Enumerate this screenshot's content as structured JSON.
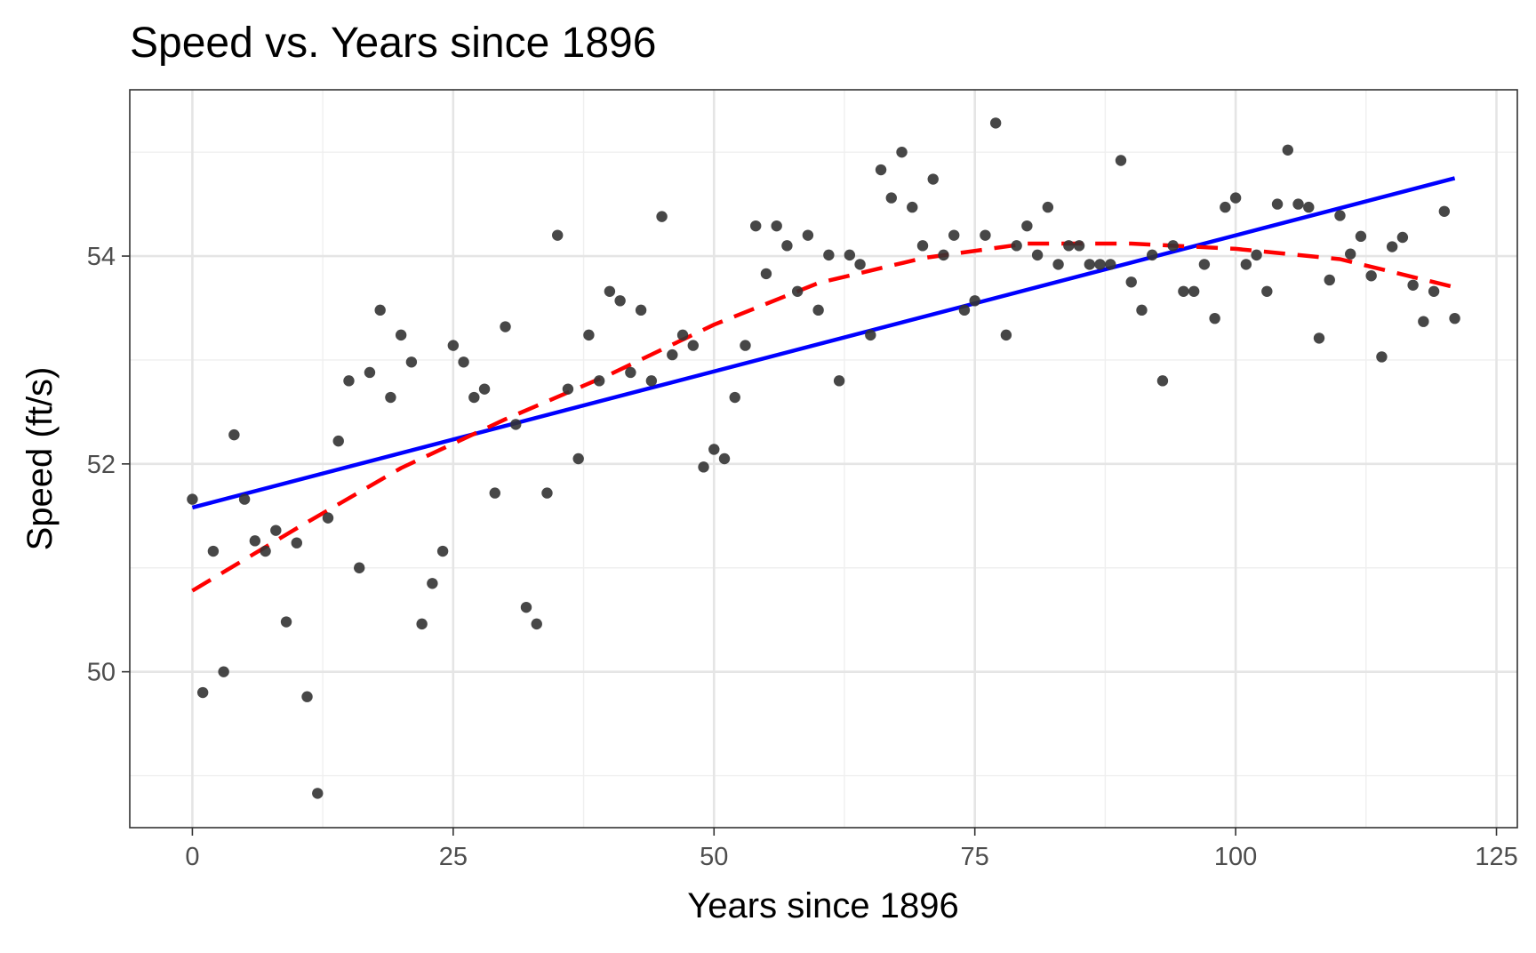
{
  "colors": {
    "points": "#333333",
    "linear_fit": "#0000ff",
    "quadratic_fit": "#ff0000",
    "grid": "#e5e5e5",
    "tick_text": "#4d4d4d"
  },
  "chart_data": {
    "type": "scatter",
    "title": "Speed vs. Years since 1896",
    "xlabel": "Years since 1896",
    "ylabel": "Speed (ft/s)",
    "xlim": [
      -6,
      127
    ],
    "ylim": [
      48.5,
      55.6
    ],
    "x_ticks": [
      0,
      25,
      50,
      75,
      100,
      125
    ],
    "x_tick_labels": [
      "0",
      "25",
      "50",
      "75",
      "100",
      "125"
    ],
    "y_ticks": [
      50,
      52,
      54
    ],
    "y_tick_labels": [
      "50",
      "52",
      "54"
    ],
    "grid": "major and minor",
    "legend": "none",
    "series": [
      {
        "kind": "points",
        "x": [
          0,
          1,
          2,
          3,
          4,
          5,
          6,
          7,
          8,
          9,
          10,
          11,
          12,
          13,
          14,
          15,
          16,
          17,
          18,
          19,
          20,
          21,
          22,
          23,
          24,
          25,
          26,
          27,
          28,
          29,
          30,
          31,
          32,
          33,
          34,
          35,
          36,
          37,
          38,
          39,
          40,
          41,
          42,
          43,
          44,
          45,
          46,
          47,
          48,
          49,
          50,
          51,
          52,
          53,
          54,
          55,
          56,
          57,
          58,
          59,
          60,
          61,
          62,
          63,
          64,
          65,
          66,
          67,
          68,
          69,
          70,
          71,
          72,
          73,
          74,
          75,
          76,
          77,
          78,
          79,
          80,
          81,
          82,
          83,
          84,
          85,
          86,
          87,
          88,
          89,
          90,
          91,
          92,
          93,
          94,
          95,
          96,
          97,
          98,
          99,
          100,
          101,
          102,
          103,
          104,
          105,
          106,
          107,
          108,
          109,
          110,
          111,
          112,
          113,
          114,
          115,
          116,
          117,
          118,
          119,
          120,
          121
        ],
        "y": [
          51.66,
          49.8,
          51.16,
          50.0,
          52.28,
          51.66,
          51.26,
          51.16,
          51.36,
          50.48,
          51.24,
          49.76,
          48.83,
          51.48,
          52.22,
          52.8,
          51.0,
          52.88,
          53.48,
          52.64,
          53.24,
          52.98,
          50.46,
          50.85,
          51.16,
          53.14,
          52.98,
          52.64,
          52.72,
          51.72,
          53.32,
          52.38,
          50.62,
          50.46,
          51.72,
          54.2,
          52.72,
          52.05,
          53.24,
          52.8,
          53.66,
          53.57,
          52.88,
          53.48,
          52.8,
          54.38,
          53.05,
          53.24,
          53.14,
          51.97,
          52.14,
          52.05,
          52.64,
          53.14,
          54.29,
          53.83,
          54.29,
          54.1,
          53.66,
          54.2,
          53.48,
          54.01,
          52.8,
          54.01,
          53.92,
          53.24,
          54.83,
          54.56,
          55.0,
          54.47,
          54.1,
          54.74,
          54.01,
          54.2,
          53.48,
          53.57,
          54.2,
          55.28,
          53.24,
          54.1,
          54.29,
          54.01,
          54.47,
          53.92,
          54.1,
          54.1,
          53.92,
          53.92,
          53.92,
          54.92,
          53.75,
          53.48,
          54.01,
          52.8,
          54.1,
          53.66,
          53.66,
          53.92,
          53.4,
          54.47,
          54.56,
          53.92,
          54.01,
          53.66,
          54.5,
          55.02,
          54.5,
          54.47,
          53.21,
          53.77,
          54.39,
          54.02,
          54.19,
          53.81,
          53.03,
          54.09,
          54.18,
          53.72,
          53.37,
          53.66,
          54.43,
          53.4
        ]
      },
      {
        "kind": "line",
        "style": "solid",
        "color": "#0000ff",
        "x": [
          0,
          121
        ],
        "y": [
          51.58,
          54.75
        ]
      },
      {
        "kind": "line",
        "style": "dashed",
        "color": "#ff0000",
        "x": [
          0,
          10,
          20,
          30,
          40,
          50,
          60,
          70,
          80,
          90,
          100,
          110,
          121
        ],
        "y": [
          50.78,
          51.38,
          51.96,
          52.43,
          52.86,
          53.34,
          53.74,
          53.98,
          54.12,
          54.12,
          54.07,
          53.97,
          53.7
        ]
      }
    ]
  }
}
